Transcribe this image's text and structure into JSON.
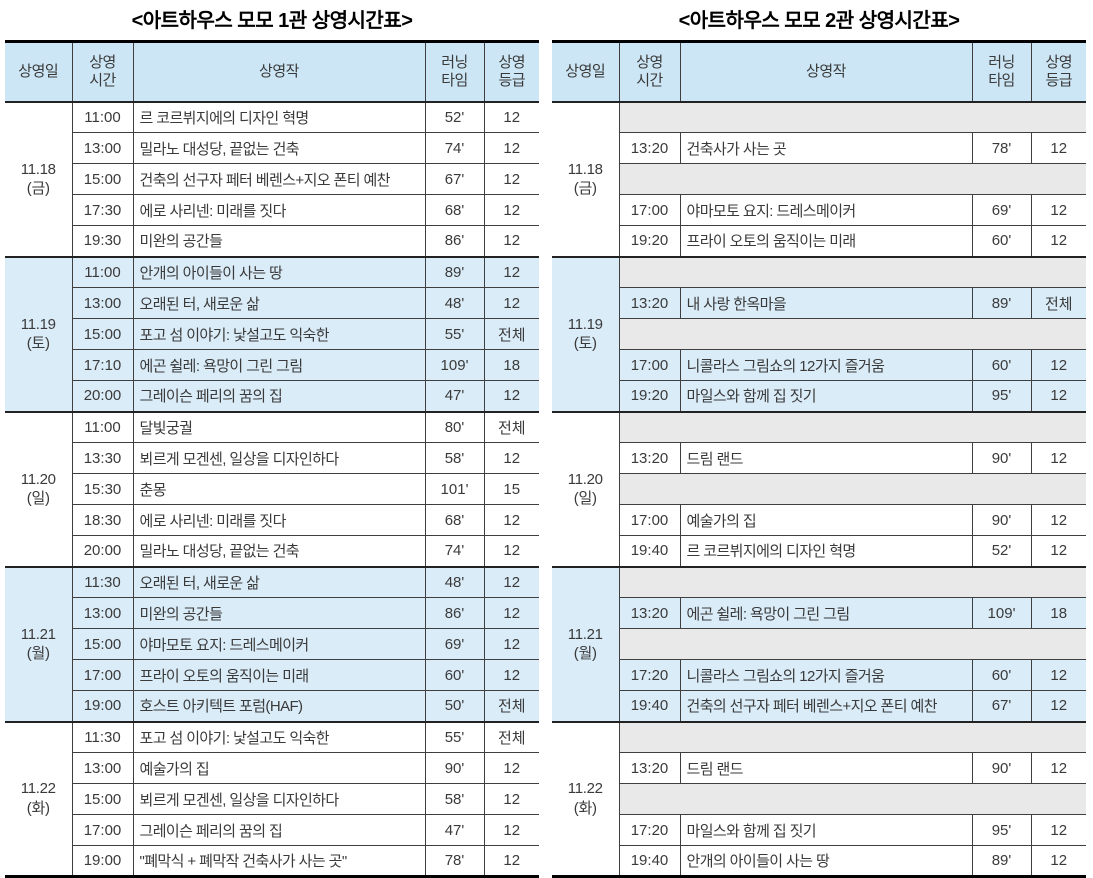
{
  "colors": {
    "header_bg": "#cde6f5",
    "section_bg": "#daecf8",
    "empty_row_bg": "#e9e9e9",
    "border": "#3f3f3f",
    "heavy_border": "#000000",
    "text": "#3a3a3a"
  },
  "tables": [
    {
      "title": "<아트하우스 모모 1관 상영시간표>",
      "headers": {
        "date": "상영일",
        "time": "상영\n시간",
        "film": "상영작",
        "runtime": "러닝\n타임",
        "rating": "상영\n등급"
      },
      "sections": [
        {
          "date": "11.18\n(금)",
          "shaded": false,
          "rows": [
            {
              "time": "11:00",
              "film": "르 코르뷔지에의 디자인 혁명",
              "runtime": "52'",
              "rating": "12"
            },
            {
              "time": "13:00",
              "film": "밀라노 대성당, 끝없는 건축",
              "runtime": "74'",
              "rating": "12"
            },
            {
              "time": "15:00",
              "film": "건축의 선구자 페터 베렌스+지오 폰티 예찬",
              "runtime": "67'",
              "rating": "12"
            },
            {
              "time": "17:30",
              "film": "에로 사리넨: 미래를 짓다",
              "runtime": "68'",
              "rating": "12"
            },
            {
              "time": "19:30",
              "film": "미완의 공간들",
              "runtime": "86'",
              "rating": "12"
            }
          ]
        },
        {
          "date": "11.19\n(토)",
          "shaded": true,
          "rows": [
            {
              "time": "11:00",
              "film": "안개의 아이들이 사는 땅",
              "runtime": "89'",
              "rating": "12"
            },
            {
              "time": "13:00",
              "film": "오래된 터, 새로운 삶",
              "runtime": "48'",
              "rating": "12"
            },
            {
              "time": "15:00",
              "film": "포고 섬 이야기: 낯설고도 익숙한",
              "runtime": "55'",
              "rating": "전체"
            },
            {
              "time": "17:10",
              "film": "에곤 쉴레: 욕망이 그린 그림",
              "runtime": "109'",
              "rating": "18"
            },
            {
              "time": "20:00",
              "film": "그레이슨 페리의 꿈의 집",
              "runtime": "47'",
              "rating": "12"
            }
          ]
        },
        {
          "date": "11.20\n(일)",
          "shaded": false,
          "rows": [
            {
              "time": "11:00",
              "film": "달빛궁궐",
              "runtime": "80'",
              "rating": "전체"
            },
            {
              "time": "13:30",
              "film": "뵈르게 모겐센, 일상을 디자인하다",
              "runtime": "58'",
              "rating": "12"
            },
            {
              "time": "15:30",
              "film": "춘몽",
              "runtime": "101'",
              "rating": "15"
            },
            {
              "time": "18:30",
              "film": "에로 사리넨: 미래를 짓다",
              "runtime": "68'",
              "rating": "12"
            },
            {
              "time": "20:00",
              "film": "밀라노 대성당, 끝없는 건축",
              "runtime": "74'",
              "rating": "12"
            }
          ]
        },
        {
          "date": "11.21\n(월)",
          "shaded": true,
          "rows": [
            {
              "time": "11:30",
              "film": "오래된 터, 새로운 삶",
              "runtime": "48'",
              "rating": "12"
            },
            {
              "time": "13:00",
              "film": "미완의 공간들",
              "runtime": "86'",
              "rating": "12"
            },
            {
              "time": "15:00",
              "film": "야마모토 요지: 드레스메이커",
              "runtime": "69'",
              "rating": "12"
            },
            {
              "time": "17:00",
              "film": "프라이 오토의 움직이는 미래",
              "runtime": "60'",
              "rating": "12"
            },
            {
              "time": "19:00",
              "film": "호스트 아키텍트 포럼(HAF)",
              "runtime": "50'",
              "rating": "전체"
            }
          ]
        },
        {
          "date": "11.22\n(화)",
          "shaded": false,
          "rows": [
            {
              "time": "11:30",
              "film": "포고 섬 이야기: 낯설고도 익숙한",
              "runtime": "55'",
              "rating": "전체"
            },
            {
              "time": "13:00",
              "film": "예술가의 집",
              "runtime": "90'",
              "rating": "12"
            },
            {
              "time": "15:00",
              "film": "뵈르게 모겐센, 일상을 디자인하다",
              "runtime": "58'",
              "rating": "12"
            },
            {
              "time": "17:00",
              "film": "그레이슨 페리의 꿈의 집",
              "runtime": "47'",
              "rating": "12"
            },
            {
              "time": "19:00",
              "film": "\"폐막식 + 폐막작 건축사가 사는 곳\"",
              "runtime": "78'",
              "rating": "12"
            }
          ]
        }
      ]
    },
    {
      "title": "<아트하우스 모모 2관 상영시간표>",
      "headers": {
        "date": "상영일",
        "time": "상영\n시간",
        "film": "상영작",
        "runtime": "러닝\n타임",
        "rating": "상영\n등급"
      },
      "sections": [
        {
          "date": "11.18\n(금)",
          "shaded": false,
          "rows": [
            {
              "empty": true
            },
            {
              "time": "13:20",
              "film": "건축사가 사는 곳",
              "runtime": "78'",
              "rating": "12"
            },
            {
              "empty": true
            },
            {
              "time": "17:00",
              "film": "야마모토 요지: 드레스메이커",
              "runtime": "69'",
              "rating": "12"
            },
            {
              "time": "19:20",
              "film": "프라이 오토의 움직이는 미래",
              "runtime": "60'",
              "rating": "12"
            }
          ]
        },
        {
          "date": "11.19\n(토)",
          "shaded": true,
          "rows": [
            {
              "empty": true
            },
            {
              "time": "13:20",
              "film": "내 사랑 한옥마을",
              "runtime": "89'",
              "rating": "전체"
            },
            {
              "empty": true
            },
            {
              "time": "17:00",
              "film": "니콜라스 그림쇼의 12가지 즐거움",
              "runtime": "60'",
              "rating": "12"
            },
            {
              "time": "19:20",
              "film": "마일스와 함께 집 짓기",
              "runtime": "95'",
              "rating": "12"
            }
          ]
        },
        {
          "date": "11.20\n(일)",
          "shaded": false,
          "rows": [
            {
              "empty": true
            },
            {
              "time": "13:20",
              "film": "드림 랜드",
              "runtime": "90'",
              "rating": "12"
            },
            {
              "empty": true
            },
            {
              "time": "17:00",
              "film": "예술가의 집",
              "runtime": "90'",
              "rating": "12"
            },
            {
              "time": "19:40",
              "film": "르 코르뷔지에의 디자인 혁명",
              "runtime": "52'",
              "rating": "12"
            }
          ]
        },
        {
          "date": "11.21\n(월)",
          "shaded": true,
          "rows": [
            {
              "empty": true
            },
            {
              "time": "13:20",
              "film": "에곤 쉴레: 욕망이 그린 그림",
              "runtime": "109'",
              "rating": "18"
            },
            {
              "empty": true
            },
            {
              "time": "17:20",
              "film": "니콜라스 그림쇼의 12가지 즐거움",
              "runtime": "60'",
              "rating": "12"
            },
            {
              "time": "19:40",
              "film": "건축의 선구자 페터 베렌스+지오 폰티 예찬",
              "runtime": "67'",
              "rating": "12"
            }
          ]
        },
        {
          "date": "11.22\n(화)",
          "shaded": false,
          "rows": [
            {
              "empty": true
            },
            {
              "time": "13:20",
              "film": "드림 랜드",
              "runtime": "90'",
              "rating": "12"
            },
            {
              "empty": true
            },
            {
              "time": "17:20",
              "film": "마일스와 함께 집 짓기",
              "runtime": "95'",
              "rating": "12"
            },
            {
              "time": "19:40",
              "film": "안개의 아이들이 사는 땅",
              "runtime": "89'",
              "rating": "12"
            }
          ]
        }
      ]
    }
  ]
}
